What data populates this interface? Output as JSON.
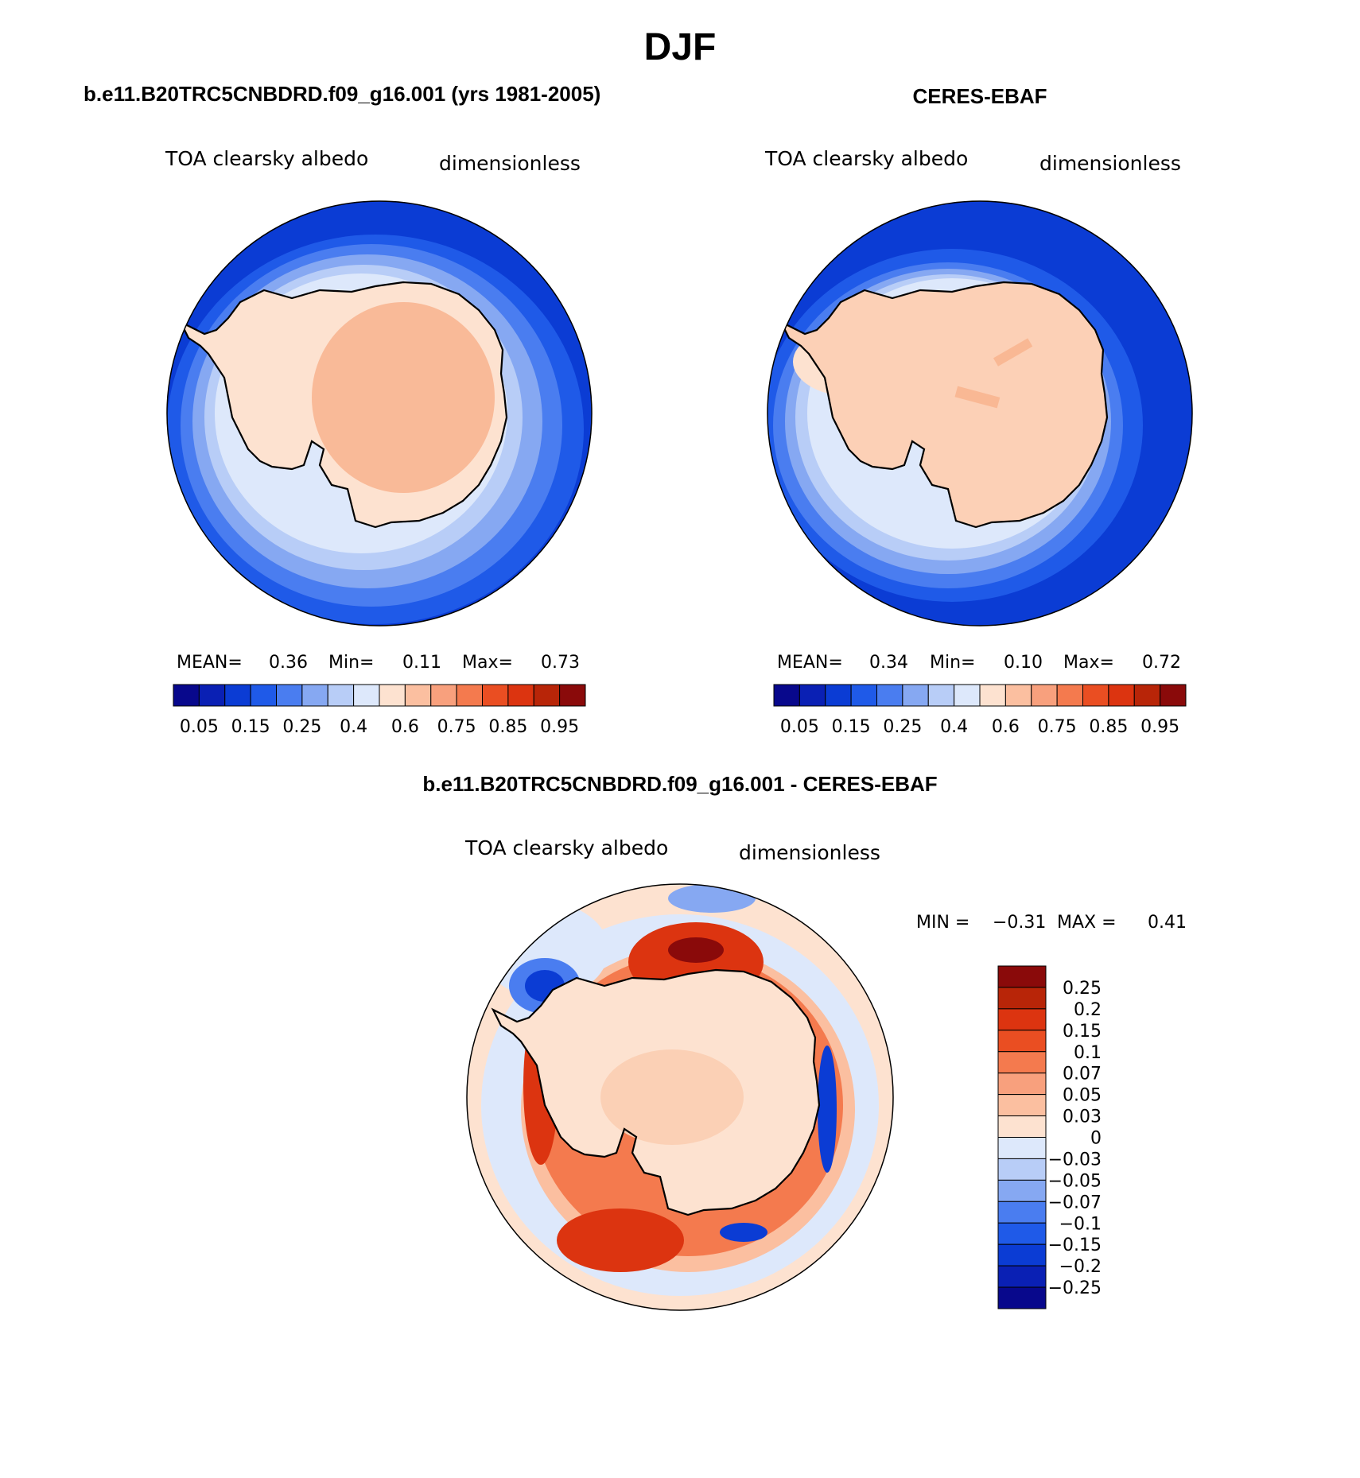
{
  "figure_title": "DJF",
  "panels": {
    "model": {
      "title": "b.e11.B20TRC5CNBDRD.f09_g16.001 (yrs 1981-2005)",
      "variable": "TOA clearsky albedo",
      "units": "dimensionless",
      "stats": {
        "mean_label": "MEAN=",
        "mean": "0.36",
        "min_label": "Min=",
        "min": "0.11",
        "max_label": "Max=",
        "max": "0.73"
      }
    },
    "obs": {
      "title": "CERES-EBAF",
      "variable": "TOA clearsky albedo",
      "units": "dimensionless",
      "stats": {
        "mean_label": "MEAN=",
        "mean": "0.34",
        "min_label": "Min=",
        "min": "0.10",
        "max_label": "Max=",
        "max": "0.72"
      }
    },
    "diff": {
      "title": "b.e11.B20TRC5CNBDRD.f09_g16.001 - CERES-EBAF",
      "variable": "TOA clearsky albedo",
      "units": "dimensionless",
      "min_label": "MIN =",
      "min": "−0.31",
      "max_label": "MAX =",
      "max": "0.41"
    }
  },
  "colorbars": {
    "absolute": {
      "tick_labels": [
        "0.05",
        "0.15",
        "0.25",
        "0.4",
        "0.6",
        "0.75",
        "0.85",
        "0.95"
      ],
      "colors": [
        "#08088c",
        "#0a20b4",
        "#0b3cd4",
        "#1f5ae8",
        "#4a7df0",
        "#86a8f2",
        "#b8cdf7",
        "#dde8fb",
        "#fde2d0",
        "#fbbfa0",
        "#f8a07d",
        "#f47a4e",
        "#ea4e22",
        "#dc3410",
        "#b82508",
        "#8a0a0a"
      ]
    },
    "difference": {
      "tick_labels": [
        "0.25",
        "0.2",
        "0.15",
        "0.1",
        "0.07",
        "0.05",
        "0.03",
        "0",
        "−0.03",
        "−0.05",
        "−0.07",
        "−0.1",
        "−0.15",
        "−0.2",
        "−0.25"
      ],
      "colors": [
        "#8a0a0a",
        "#b82508",
        "#dc3410",
        "#ea4e22",
        "#f47a4e",
        "#f8a07d",
        "#fbbfa0",
        "#fde2d0",
        "#dde8fb",
        "#b8cdf7",
        "#86a8f2",
        "#4a7df0",
        "#1f5ae8",
        "#0b3cd4",
        "#0a20b4",
        "#08088c"
      ]
    }
  }
}
